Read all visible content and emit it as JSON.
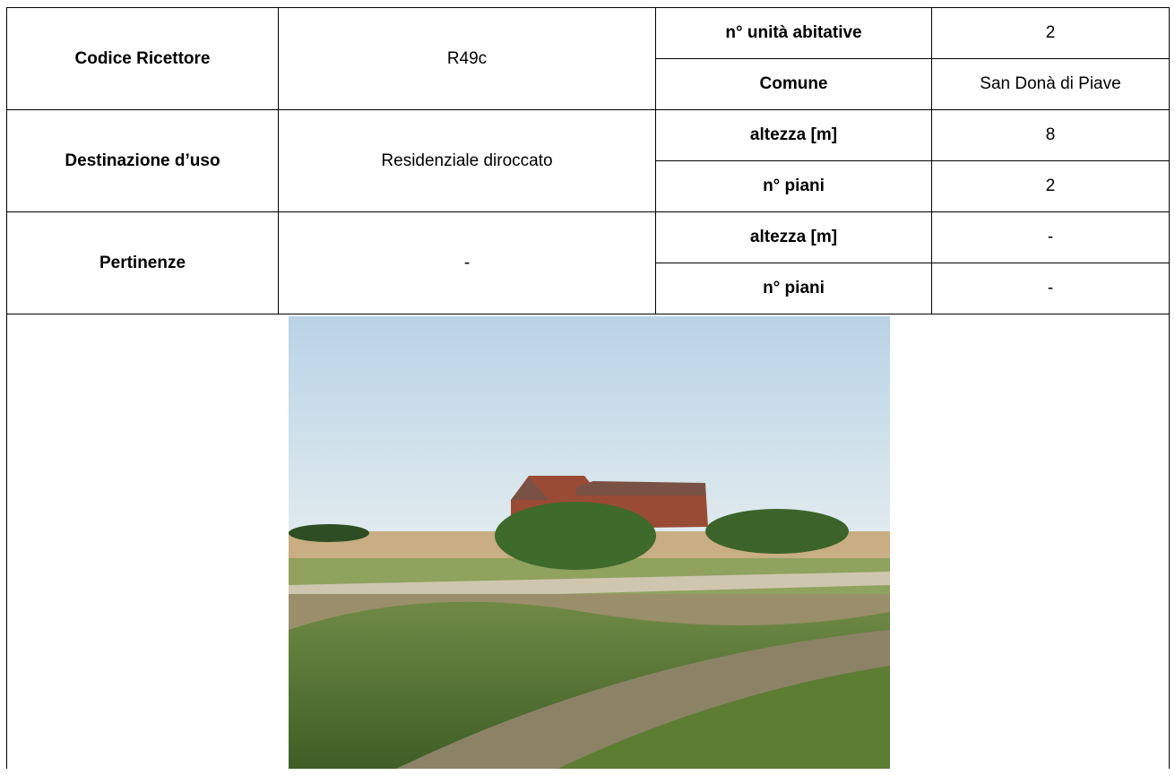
{
  "table": {
    "rows": [
      {
        "label": "Codice Ricettore",
        "value": "R49c",
        "details": [
          [
            "n° unità abitative",
            "2"
          ],
          [
            "Comune",
            "San Donà di Piave"
          ]
        ]
      },
      {
        "label": "Destinazione d’uso",
        "value": "Residenziale diroccato",
        "details": [
          [
            "altezza [m]",
            "8"
          ],
          [
            "n° piani",
            "2"
          ]
        ]
      },
      {
        "label": "Pertinenze",
        "value": "-",
        "details": [
          [
            "altezza [m]",
            "-"
          ],
          [
            "n° piani",
            "-"
          ]
        ]
      }
    ]
  }
}
